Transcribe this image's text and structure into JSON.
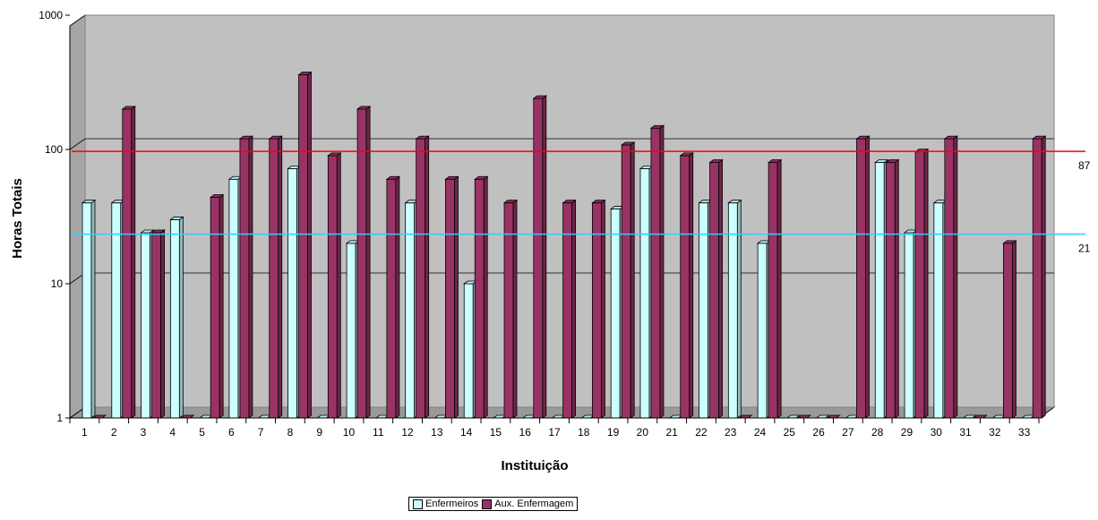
{
  "chart_data": {
    "type": "bar",
    "xlabel": "Instituição",
    "ylabel": "Horas Totais",
    "yscale": "log",
    "ylim": [
      1,
      1000
    ],
    "yticks": [
      "1",
      "10",
      "100",
      "1000"
    ],
    "categories": [
      "1",
      "2",
      "3",
      "4",
      "5",
      "6",
      "7",
      "8",
      "9",
      "10",
      "11",
      "12",
      "13",
      "14",
      "15",
      "16",
      "17",
      "18",
      "19",
      "20",
      "21",
      "22",
      "23",
      "24",
      "25",
      "26",
      "27",
      "28",
      "29",
      "30",
      "31",
      "32",
      "33"
    ],
    "series": [
      {
        "name": "Enfermeiros",
        "color": "#ccffff",
        "values": [
          40,
          40,
          24,
          30,
          1,
          60,
          1,
          72,
          1,
          20,
          1,
          40,
          1,
          10,
          1,
          1,
          1,
          1,
          36,
          72,
          1,
          40,
          40,
          20,
          1,
          1,
          1,
          80,
          24,
          40,
          1,
          1,
          1
        ]
      },
      {
        "name": "Aux. Enfermagem",
        "color": "#993366",
        "values": [
          1,
          200,
          24,
          1,
          44,
          120,
          120,
          360,
          90,
          200,
          60,
          120,
          60,
          60,
          40,
          240,
          40,
          40,
          108,
          144,
          90,
          80,
          1,
          80,
          1,
          1,
          120,
          80,
          96,
          120,
          1,
          20,
          120
        ]
      }
    ],
    "reference_lines": [
      {
        "value": 87,
        "label": "87",
        "color": "#ff0000"
      },
      {
        "value": 21,
        "label": "21",
        "color": "#33ccff"
      }
    ],
    "legend_position": "bottom",
    "grid": true
  }
}
